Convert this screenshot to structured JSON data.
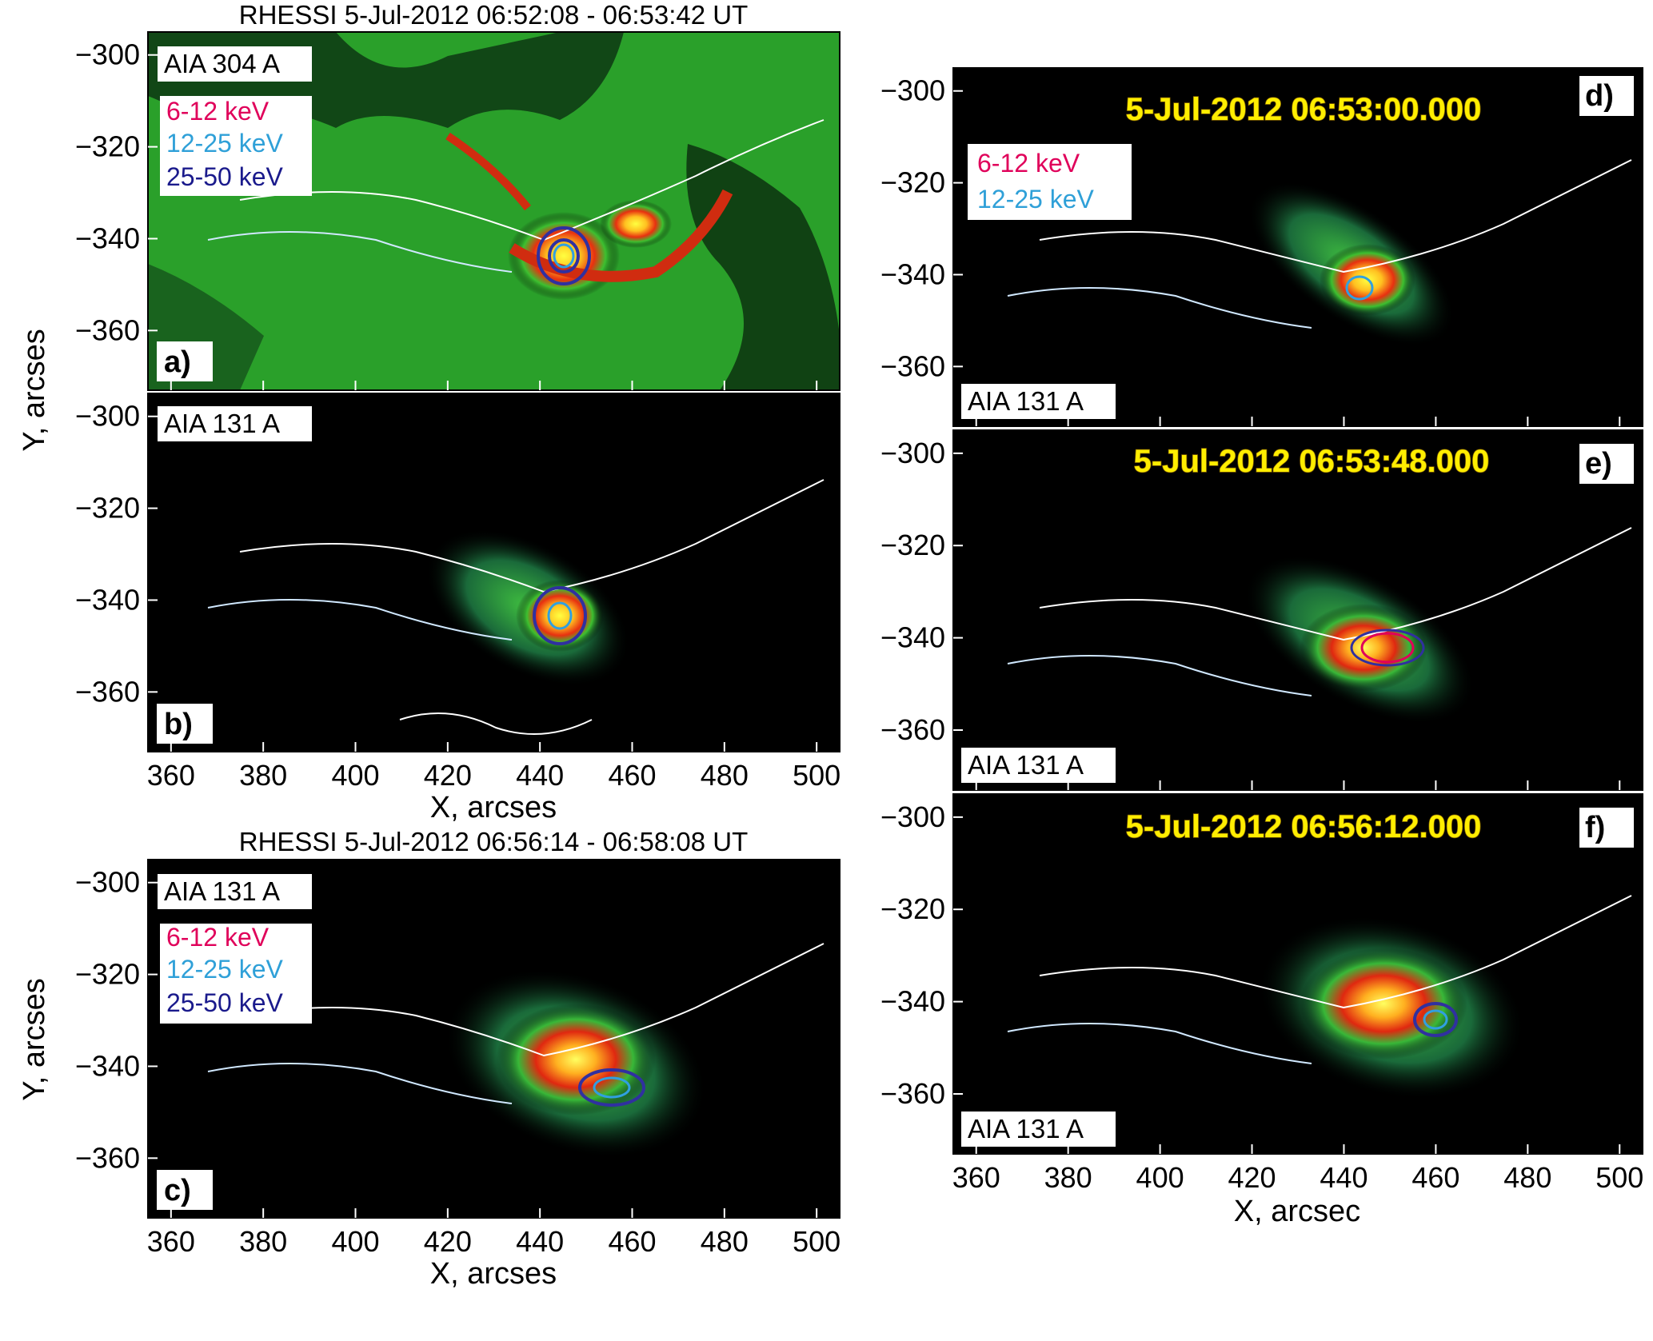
{
  "figure": {
    "top_title": "RHESSI 5-Jul-2012 06:52:08 - 06:53:42 UT",
    "mid_title": "RHESSI 5-Jul-2012 06:56:14 - 06:58:08 UT",
    "left_xlabel": "X, arcses",
    "right_xlabel": "X, arcsec",
    "ylabel": "Y, arcses"
  },
  "axes": {
    "x_ticks": [
      "360",
      "380",
      "400",
      "420",
      "440",
      "460",
      "480",
      "500"
    ],
    "y_ticks": [
      "−300",
      "−320",
      "−340",
      "−360"
    ],
    "x_range": [
      355,
      505
    ],
    "y_range": [
      -373,
      -295
    ]
  },
  "legend": {
    "e1": "6-12 keV",
    "e2": "12-25 keV",
    "e3": "25-50 keV",
    "colors": {
      "e1": "#e0005a",
      "e2": "#2fa0d8",
      "e3": "#1a1a8c"
    }
  },
  "panels": {
    "a": {
      "label": "a)",
      "instrument": "AIA 304 A"
    },
    "b": {
      "label": "b)",
      "instrument": "AIA 131 A"
    },
    "c": {
      "label": "c)",
      "instrument": "AIA 131 A"
    },
    "d": {
      "label": "d)",
      "instrument": "AIA 131 A",
      "time": "5-Jul-2012 06:53:00.000"
    },
    "e": {
      "label": "e)",
      "instrument": "AIA 131 A",
      "time": "5-Jul-2012 06:53:48.000"
    },
    "f": {
      "label": "f)",
      "instrument": "AIA 131 A",
      "time": "5-Jul-2012 06:56:12.000"
    }
  }
}
